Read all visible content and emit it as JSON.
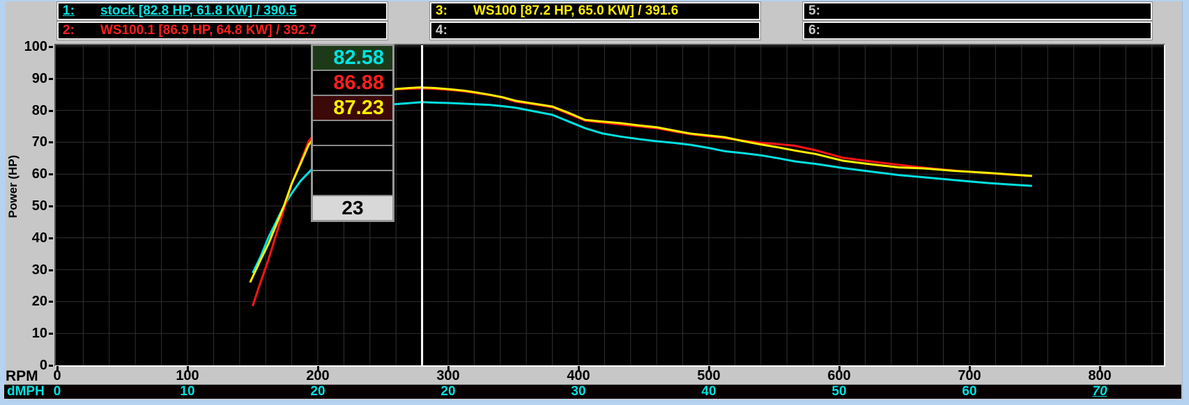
{
  "header": {
    "runs": [
      {
        "index": "1:",
        "label": "stock [82.8 HP, 61.8 KW] / 390.5",
        "color": "#00e2e2",
        "selected": true
      },
      {
        "index": "2:",
        "label": "WS100.1 [86.9 HP, 64.8 KW] / 392.7",
        "color": "#ff1e1e",
        "selected": false
      },
      {
        "index": "3:",
        "label": "WS100 [87.2 HP, 65.0 KW] / 391.6",
        "color": "#ffee00",
        "selected": false
      },
      {
        "index": "4:",
        "label": "",
        "color": "#c8c8c8",
        "selected": false
      },
      {
        "index": "5:",
        "label": "",
        "color": "#c8c8c8",
        "selected": false
      },
      {
        "index": "6:",
        "label": "",
        "color": "#c8c8c8",
        "selected": false
      }
    ]
  },
  "cursor": {
    "rpm_position": 280,
    "readouts": [
      {
        "value": "82.58",
        "color": "#00e2e2",
        "bg": "#1c3a18"
      },
      {
        "value": "86.88",
        "color": "#ff1e1e",
        "bg": "#000000"
      },
      {
        "value": "87.23",
        "color": "#ffee00",
        "bg": "#3c0808"
      },
      {
        "value": "",
        "color": "#ffffff",
        "bg": "#000000"
      },
      {
        "value": "",
        "color": "#ffffff",
        "bg": "#000000"
      },
      {
        "value": "",
        "color": "#ffffff",
        "bg": "#000000"
      }
    ],
    "footer_value": "23"
  },
  "chart_data": {
    "type": "line",
    "xlabel": "RPM",
    "x2label": "dMPH",
    "ylabel": "Power (HP)",
    "xlim": [
      0,
      850
    ],
    "ylim": [
      0,
      100
    ],
    "grid": {
      "x_step": 20,
      "y_step": 10,
      "color": "#313131"
    },
    "y_ticks": [
      0,
      10,
      20,
      30,
      40,
      50,
      60,
      70,
      80,
      90,
      100
    ],
    "x_ticks": [
      {
        "rpm": 0,
        "dmph": "0",
        "emph": false
      },
      {
        "rpm": 100,
        "dmph": "10",
        "emph": false
      },
      {
        "rpm": 200,
        "dmph": "20",
        "emph": false
      },
      {
        "rpm": 300,
        "dmph": "20",
        "emph": false
      },
      {
        "rpm": 400,
        "dmph": "30",
        "emph": false
      },
      {
        "rpm": 500,
        "dmph": "40",
        "emph": false
      },
      {
        "rpm": 600,
        "dmph": "50",
        "emph": false
      },
      {
        "rpm": 700,
        "dmph": "60",
        "emph": false
      },
      {
        "rpm": 800,
        "dmph": "70",
        "emph": true
      }
    ],
    "series": [
      {
        "name": "stock",
        "color": "#00e0e0",
        "points": [
          [
            150,
            29
          ],
          [
            156,
            34
          ],
          [
            162,
            40
          ],
          [
            168,
            45
          ],
          [
            174,
            50
          ],
          [
            180,
            54
          ],
          [
            187,
            58
          ],
          [
            193,
            60.5
          ],
          [
            200,
            63.5
          ],
          [
            210,
            68
          ],
          [
            220,
            72
          ],
          [
            230,
            75.5
          ],
          [
            240,
            78.5
          ],
          [
            250,
            80.8
          ],
          [
            258,
            81.9
          ],
          [
            268,
            82.2
          ],
          [
            280,
            82.6
          ],
          [
            292,
            82.4
          ],
          [
            302,
            82.3
          ],
          [
            312,
            82.1
          ],
          [
            322,
            81.9
          ],
          [
            332,
            81.7
          ],
          [
            342,
            81.3
          ],
          [
            352,
            80.8
          ],
          [
            366,
            79.7
          ],
          [
            380,
            78.6
          ],
          [
            392,
            76.6
          ],
          [
            405,
            74.4
          ],
          [
            418,
            72.8
          ],
          [
            432,
            71.8
          ],
          [
            446,
            71.0
          ],
          [
            460,
            70.3
          ],
          [
            473,
            69.8
          ],
          [
            486,
            69.2
          ],
          [
            500,
            68.2
          ],
          [
            512,
            67.2
          ],
          [
            526,
            66.6
          ],
          [
            540,
            65.9
          ],
          [
            553,
            65.0
          ],
          [
            566,
            64.0
          ],
          [
            582,
            63.2
          ],
          [
            603,
            61.9
          ],
          [
            624,
            60.8
          ],
          [
            646,
            59.7
          ],
          [
            665,
            59.0
          ],
          [
            689,
            58.1
          ],
          [
            714,
            57.2
          ],
          [
            732,
            56.7
          ],
          [
            748,
            56.3
          ]
        ]
      },
      {
        "name": "WS100.1",
        "color": "#ff1414",
        "points": [
          [
            150,
            18.6
          ],
          [
            156,
            26
          ],
          [
            162,
            33
          ],
          [
            168,
            41
          ],
          [
            174,
            49
          ],
          [
            180,
            57
          ],
          [
            187,
            64
          ],
          [
            193,
            70.3
          ],
          [
            200,
            74
          ],
          [
            210,
            78.5
          ],
          [
            220,
            81.5
          ],
          [
            230,
            83.8
          ],
          [
            240,
            85.2
          ],
          [
            250,
            86.1
          ],
          [
            260,
            86.6
          ],
          [
            270,
            86.8
          ],
          [
            280,
            86.9
          ],
          [
            292,
            86.7
          ],
          [
            302,
            86.4
          ],
          [
            312,
            86.0
          ],
          [
            322,
            85.4
          ],
          [
            332,
            84.8
          ],
          [
            342,
            84.0
          ],
          [
            352,
            82.7
          ],
          [
            366,
            81.9
          ],
          [
            380,
            81.0
          ],
          [
            392,
            79.0
          ],
          [
            405,
            76.8
          ],
          [
            418,
            76.2
          ],
          [
            432,
            75.6
          ],
          [
            446,
            75.0
          ],
          [
            460,
            74.4
          ],
          [
            473,
            73.4
          ],
          [
            486,
            72.5
          ],
          [
            500,
            71.9
          ],
          [
            512,
            71.3
          ],
          [
            526,
            70.5
          ],
          [
            540,
            69.8
          ],
          [
            553,
            69.4
          ],
          [
            566,
            68.9
          ],
          [
            582,
            67.5
          ],
          [
            603,
            65.1
          ],
          [
            624,
            64.0
          ],
          [
            646,
            62.9
          ],
          [
            665,
            62.0
          ],
          [
            689,
            61.1
          ],
          [
            714,
            60.3
          ],
          [
            732,
            59.8
          ],
          [
            748,
            59.4
          ]
        ]
      },
      {
        "name": "WS100",
        "color": "#ffee00",
        "points": [
          [
            148,
            26
          ],
          [
            156,
            33
          ],
          [
            162,
            38
          ],
          [
            168,
            44
          ],
          [
            174,
            50
          ],
          [
            180,
            57
          ],
          [
            187,
            63.5
          ],
          [
            193,
            69.2
          ],
          [
            200,
            73
          ],
          [
            210,
            77.5
          ],
          [
            220,
            80.8
          ],
          [
            230,
            83.2
          ],
          [
            240,
            84.9
          ],
          [
            250,
            86.0
          ],
          [
            260,
            86.7
          ],
          [
            270,
            87.0
          ],
          [
            278,
            87.2
          ],
          [
            290,
            87.0
          ],
          [
            302,
            86.6
          ],
          [
            312,
            86.2
          ],
          [
            322,
            85.6
          ],
          [
            332,
            84.9
          ],
          [
            342,
            84.1
          ],
          [
            352,
            83.0
          ],
          [
            366,
            82.1
          ],
          [
            380,
            81.2
          ],
          [
            392,
            79.3
          ],
          [
            405,
            77.0
          ],
          [
            418,
            76.5
          ],
          [
            432,
            76.0
          ],
          [
            446,
            75.3
          ],
          [
            460,
            74.7
          ],
          [
            473,
            73.7
          ],
          [
            486,
            72.7
          ],
          [
            500,
            72.1
          ],
          [
            512,
            71.6
          ],
          [
            526,
            70.4
          ],
          [
            540,
            69.3
          ],
          [
            553,
            68.4
          ],
          [
            566,
            67.4
          ],
          [
            582,
            66.3
          ],
          [
            603,
            64.2
          ],
          [
            624,
            63.1
          ],
          [
            646,
            62.1
          ],
          [
            665,
            61.8
          ],
          [
            689,
            61.0
          ],
          [
            714,
            60.4
          ],
          [
            732,
            59.9
          ],
          [
            748,
            59.4
          ]
        ]
      }
    ]
  }
}
